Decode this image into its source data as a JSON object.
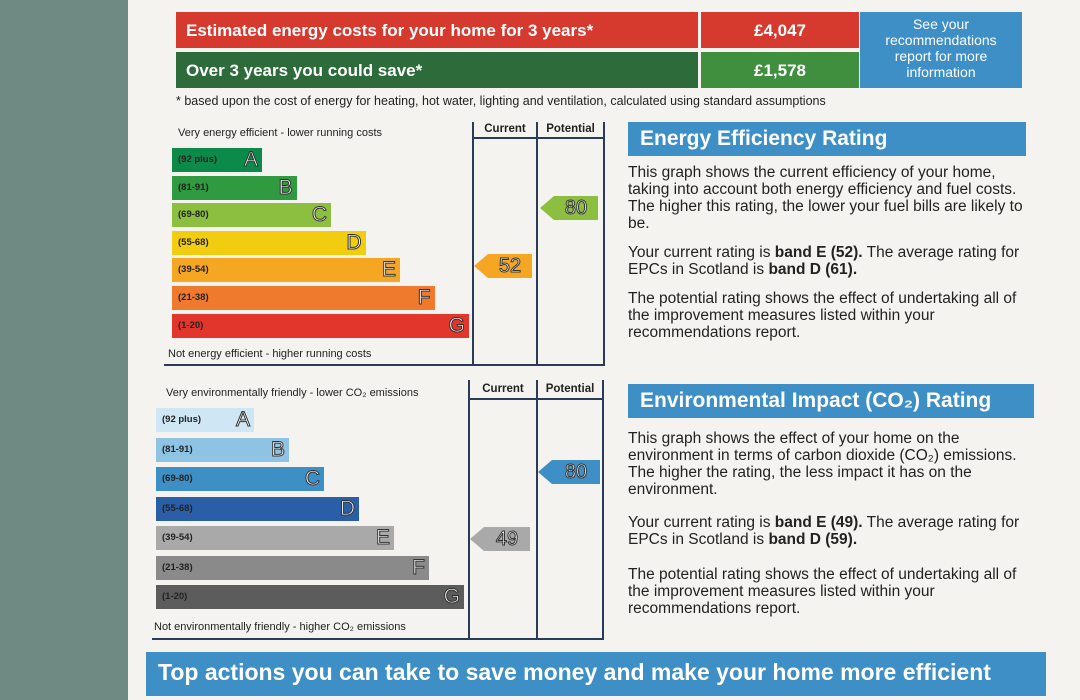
{
  "costs": {
    "row1_label": "Estimated energy costs for your home for 3 years*",
    "row1_value": "£4,047",
    "row2_label": "Over 3 years you could save*",
    "row2_value": "£1,578",
    "see_box": "See your recommendations report for more information",
    "footnote": "* based upon the cost of energy for heating, hot water, lighting and ventilation, calculated using standard assumptions"
  },
  "energy_chart": {
    "top_caption": "Very energy efficient - lower running costs",
    "bottom_caption": "Not energy efficient - higher running costs",
    "current_header": "Current",
    "potential_header": "Potential",
    "bands": [
      {
        "range": "(92 plus)",
        "letter": "A",
        "color": "#0c8a4a"
      },
      {
        "range": "(81-91)",
        "letter": "B",
        "color": "#2f9a3f"
      },
      {
        "range": "(69-80)",
        "letter": "C",
        "color": "#8cbf3f"
      },
      {
        "range": "(55-68)",
        "letter": "D",
        "color": "#f2cc0f"
      },
      {
        "range": "(39-54)",
        "letter": "E",
        "color": "#f5a623"
      },
      {
        "range": "(21-38)",
        "letter": "F",
        "color": "#ef7a2e"
      },
      {
        "range": "(1-20)",
        "letter": "G",
        "color": "#e2352b"
      }
    ],
    "current_value": "52",
    "potential_value": "80",
    "current_color": "#f5a623",
    "potential_color": "#8cbf3f"
  },
  "env_chart": {
    "top_caption": "Very environmentally friendly - lower CO₂ emissions",
    "bottom_caption": "Not environmentally friendly - higher CO₂ emissions",
    "current_header": "Current",
    "potential_header": "Potential",
    "bands": [
      {
        "range": "(92 plus)",
        "letter": "A",
        "color": "#cfe6f4"
      },
      {
        "range": "(81-91)",
        "letter": "B",
        "color": "#8fc3e3"
      },
      {
        "range": "(69-80)",
        "letter": "C",
        "color": "#3d8fc6"
      },
      {
        "range": "(55-68)",
        "letter": "D",
        "color": "#2a5fa8"
      },
      {
        "range": "(39-54)",
        "letter": "E",
        "color": "#a9a9a9"
      },
      {
        "range": "(21-38)",
        "letter": "F",
        "color": "#8a8a8a"
      },
      {
        "range": "(1-20)",
        "letter": "G",
        "color": "#5c5c5c"
      }
    ],
    "current_value": "49",
    "potential_value": "80",
    "current_color": "#a9a9a9",
    "potential_color": "#3d8fc6"
  },
  "energy_text": {
    "heading": "Energy Efficiency Rating",
    "p1": "This graph shows the current efficiency of your home, taking into account both energy efficiency and fuel costs. The higher this rating, the lower your fuel bills are likely to be.",
    "p2_a": "Your current rating is ",
    "p2_b": "band E (52).",
    "p2_c": " The average rating for EPCs in Scotland is ",
    "p2_d": "band D (61).",
    "p3": "The potential rating shows the effect of undertaking all of the improvement measures listed within your recommendations report."
  },
  "env_text": {
    "heading": "Environmental Impact (CO₂) Rating",
    "p1": "This graph shows the effect of your home on the environment in terms of carbon dioxide (CO₂) emissions. The higher the rating, the less impact it has on the environment.",
    "p2_a": "Your current rating is ",
    "p2_b": "band E (49).",
    "p2_c": " The average rating for EPCs in Scotland is ",
    "p2_d": "band D (59).",
    "p3": "The potential rating shows the effect of undertaking all of the improvement measures listed within your recommendations report."
  },
  "bottom_heading": "Top actions you can take to save money and make your home more efficient"
}
